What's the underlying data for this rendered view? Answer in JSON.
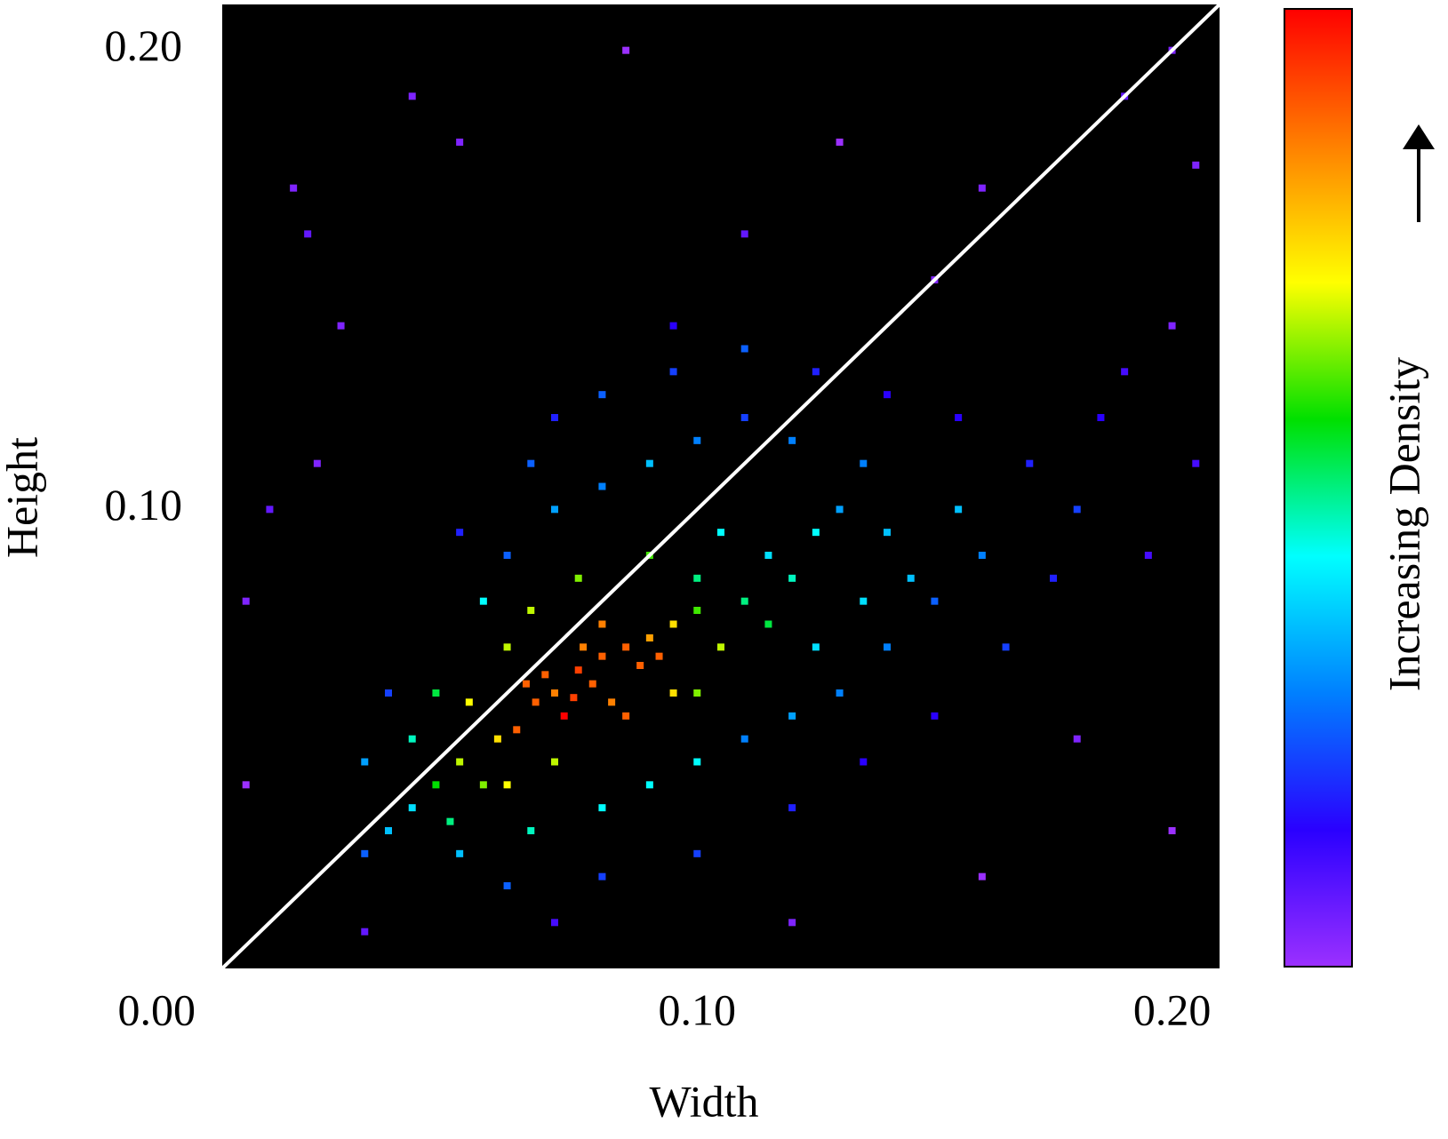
{
  "chart_data": {
    "type": "scatter",
    "x_label": "Width",
    "y_label": "Height",
    "x": [
      0.07,
      0.075,
      0.08,
      0.072,
      0.066,
      0.085,
      0.078,
      0.09,
      0.062,
      0.082,
      0.088,
      0.068,
      0.095,
      0.076,
      0.058,
      0.092,
      0.074,
      0.08,
      0.1,
      0.064,
      0.05,
      0.055,
      0.045,
      0.06,
      0.065,
      0.1,
      0.105,
      0.11,
      0.115,
      0.095,
      0.085,
      0.07,
      0.12,
      0.075,
      0.09,
      0.105,
      0.04,
      0.052,
      0.125,
      0.13,
      0.1,
      0.06,
      0.048,
      0.115,
      0.035,
      0.03,
      0.04,
      0.045,
      0.055,
      0.06,
      0.07,
      0.08,
      0.09,
      0.1,
      0.11,
      0.12,
      0.135,
      0.14,
      0.145,
      0.15,
      0.14,
      0.13,
      0.12,
      0.11,
      0.1,
      0.09,
      0.08,
      0.065,
      0.05,
      0.155,
      0.16,
      0.125,
      0.135,
      0.03,
      0.035,
      0.05,
      0.065,
      0.08,
      0.095,
      0.11,
      0.125,
      0.14,
      0.155,
      0.17,
      0.18,
      0.175,
      0.165,
      0.15,
      0.135,
      0.12,
      0.1,
      0.08,
      0.06,
      0.185,
      0.19,
      0.2,
      0.195,
      0.205,
      0.095,
      0.07,
      0.015,
      0.018,
      0.04,
      0.05,
      0.085,
      0.13,
      0.16,
      0.19,
      0.2,
      0.205,
      0.01,
      0.02,
      0.005,
      0.03,
      0.07,
      0.12,
      0.16,
      0.2,
      0.18,
      0.005,
      0.11,
      0.15,
      0.025
    ],
    "y": [
      0.06,
      0.065,
      0.068,
      0.055,
      0.058,
      0.07,
      0.062,
      0.072,
      0.052,
      0.058,
      0.066,
      0.064,
      0.075,
      0.07,
      0.05,
      0.068,
      0.059,
      0.075,
      0.078,
      0.062,
      0.045,
      0.04,
      0.04,
      0.07,
      0.078,
      0.085,
      0.07,
      0.08,
      0.09,
      0.06,
      0.055,
      0.045,
      0.085,
      0.085,
      0.09,
      0.095,
      0.035,
      0.058,
      0.095,
      0.1,
      0.06,
      0.04,
      0.032,
      0.075,
      0.03,
      0.025,
      0.05,
      0.06,
      0.08,
      0.09,
      0.1,
      0.105,
      0.11,
      0.115,
      0.12,
      0.115,
      0.11,
      0.095,
      0.085,
      0.08,
      0.07,
      0.06,
      0.055,
      0.05,
      0.045,
      0.04,
      0.035,
      0.03,
      0.025,
      0.1,
      0.09,
      0.07,
      0.08,
      0.045,
      0.06,
      0.095,
      0.11,
      0.125,
      0.13,
      0.135,
      0.13,
      0.125,
      0.12,
      0.11,
      0.1,
      0.085,
      0.07,
      0.055,
      0.045,
      0.035,
      0.025,
      0.02,
      0.018,
      0.12,
      0.13,
      0.14,
      0.09,
      0.11,
      0.14,
      0.12,
      0.17,
      0.16,
      0.19,
      0.18,
      0.2,
      0.18,
      0.17,
      0.19,
      0.2,
      0.175,
      0.1,
      0.11,
      0.08,
      0.008,
      0.01,
      0.01,
      0.02,
      0.03,
      0.05,
      0.04,
      0.16,
      0.15,
      0.14
    ],
    "xlim": [
      0,
      0.21
    ],
    "ylim": [
      0,
      0.21
    ],
    "xticks": [
      {
        "value": 0,
        "label": "0.00"
      },
      {
        "value": 0.1,
        "label": "0.10"
      },
      {
        "value": 0.2,
        "label": "0.20"
      }
    ],
    "yticks": [
      {
        "value": 0.1,
        "label": "0.10"
      },
      {
        "value": 0.2,
        "label": "0.20"
      }
    ],
    "identity_line": true,
    "background": "#000000",
    "colorbar": {
      "label": "Increasing Density",
      "colors": [
        "#9b30ff",
        "#2a00ff",
        "#0080ff",
        "#00ffff",
        "#00e000",
        "#ffff00",
        "#ff8000",
        "#ff0000"
      ]
    }
  }
}
